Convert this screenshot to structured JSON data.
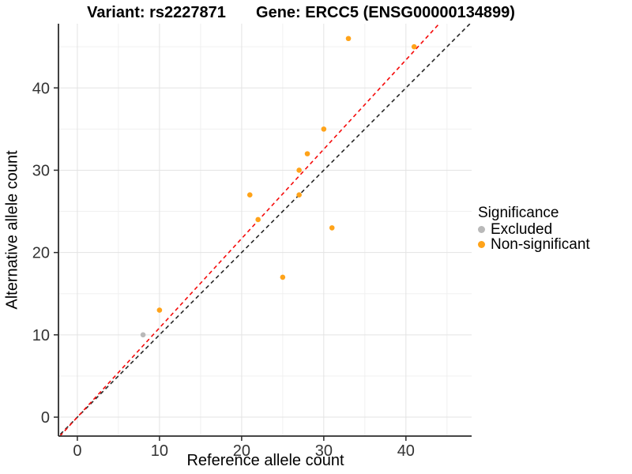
{
  "titles": {
    "left": "Variant: rs2227871",
    "right": "Gene: ERCC5 (ENSG00000134899)"
  },
  "chart_data": {
    "type": "scatter",
    "title_left": "Variant: rs2227871",
    "title_right": "Gene: ERCC5 (ENSG00000134899)",
    "xlabel": "Reference allele count",
    "ylabel": "Alternative allele count",
    "xlim": [
      -2.3,
      48.0
    ],
    "ylim": [
      -2.3,
      47.8
    ],
    "x_ticks": [
      0,
      10,
      20,
      30,
      40
    ],
    "y_ticks": [
      0,
      10,
      20,
      30,
      40
    ],
    "x_minor": [
      5,
      15,
      25,
      35,
      45
    ],
    "y_minor": [
      5,
      15,
      25,
      35,
      45
    ],
    "grid": true,
    "legend_position": "right",
    "series": [
      {
        "name": "Excluded",
        "color": "#B9B9B9",
        "points": [
          [
            8,
            10
          ]
        ]
      },
      {
        "name": "Non-significant",
        "color": "#FFA319",
        "points": [
          [
            10,
            13
          ],
          [
            21,
            27
          ],
          [
            22,
            24
          ],
          [
            25,
            17
          ],
          [
            27,
            27
          ],
          [
            27,
            30
          ],
          [
            28,
            32
          ],
          [
            30,
            35
          ],
          [
            31,
            23
          ],
          [
            33,
            46
          ],
          [
            41,
            45
          ]
        ]
      }
    ],
    "lines": [
      {
        "name": "identity-line",
        "slope": 1.0,
        "intercept": 0,
        "color": "#262626",
        "style": "dashed"
      },
      {
        "name": "ratio-line",
        "slope": 1.085,
        "intercept": 0,
        "color": "#F50A0A",
        "style": "dashed"
      }
    ],
    "colors": {
      "grid_major": "#E3E3E3",
      "grid_minor": "#F0F0F0",
      "axis_line": "#2B2B2B",
      "tick_label": "#333333"
    }
  },
  "legend": {
    "title": "Significance",
    "items": [
      {
        "label": "Excluded",
        "color": "#B9B9B9"
      },
      {
        "label": "Non-significant",
        "color": "#FFA319"
      }
    ]
  }
}
